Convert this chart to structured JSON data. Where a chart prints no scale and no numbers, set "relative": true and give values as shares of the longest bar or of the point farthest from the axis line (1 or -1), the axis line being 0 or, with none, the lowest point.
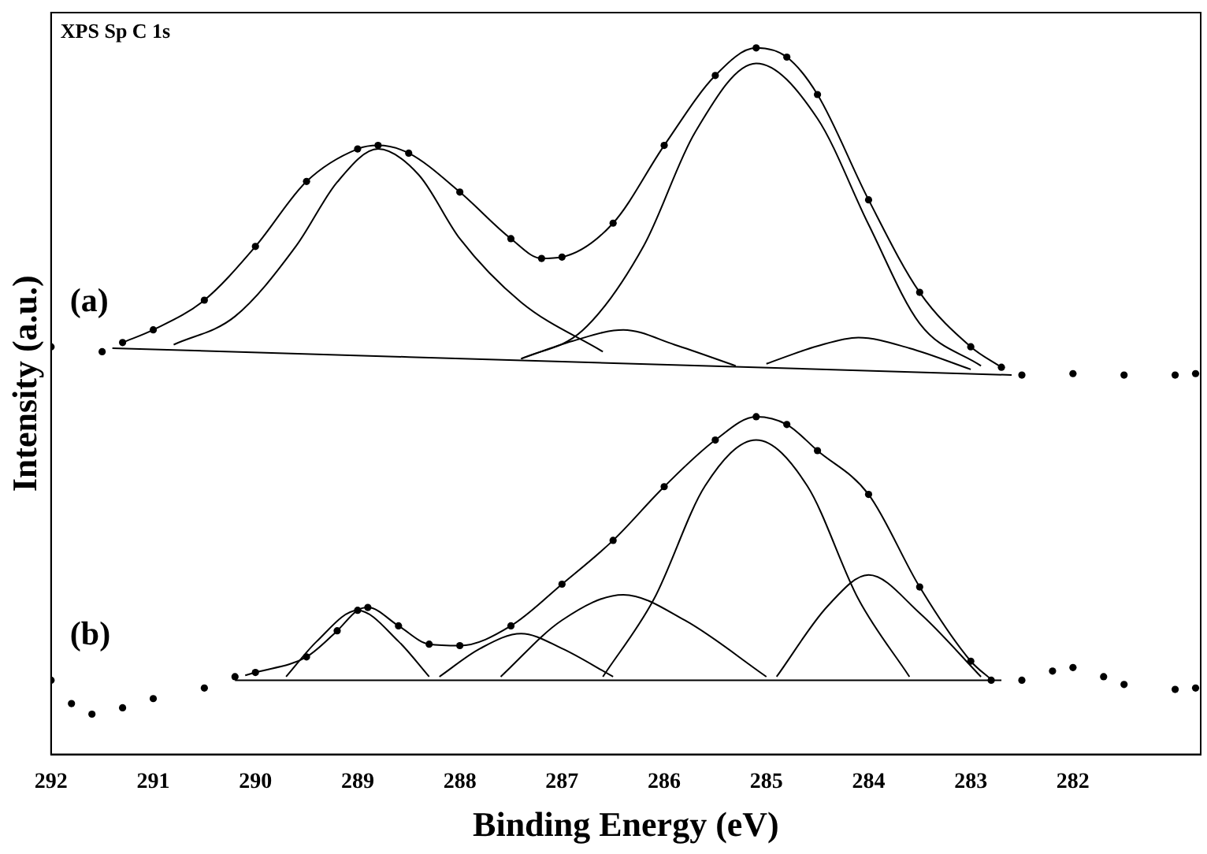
{
  "chart_data": {
    "type": "line",
    "xlabel": "Binding Energy (eV)",
    "ylabel": "Intensity (a.u.)",
    "relative": true,
    "xlim": [
      292,
      280.75
    ],
    "xticks": [
      292,
      291,
      290,
      289,
      288,
      287,
      286,
      285,
      284,
      283,
      282
    ],
    "tick_labels": "x",
    "grid": false,
    "legend": false,
    "marker": "circle",
    "line_style": "solid",
    "annotations": [
      "XPS Sp C 1s",
      "(a)",
      "(b)"
    ],
    "series": [
      {
        "type": "scatter",
        "color": "#000000",
        "x": [
          292,
          291.5,
          291.3,
          291,
          290.5,
          290,
          289.5,
          289,
          288.8,
          288.5,
          288,
          287.5,
          287.2,
          287,
          286.5,
          286,
          285.5,
          285.1,
          284.8,
          284.5,
          284,
          283.5,
          283,
          282.7,
          282.5,
          282,
          281.5,
          281,
          280.8
        ],
        "values": [
          0.577,
          0.57,
          0.583,
          0.601,
          0.643,
          0.719,
          0.811,
          0.857,
          0.862,
          0.851,
          0.796,
          0.73,
          0.702,
          0.704,
          0.752,
          0.862,
          0.961,
          1,
          0.987,
          0.934,
          0.785,
          0.654,
          0.577,
          0.548,
          0.537,
          0.539,
          0.537,
          0.537,
          0.539
        ]
      },
      {
        "type": "line",
        "marker": "none",
        "color": "#000000",
        "x": [
          291.3,
          291,
          290.5,
          290,
          289.5,
          289,
          288.8,
          288.5,
          288,
          287.5,
          287.2,
          287,
          286.5,
          286,
          285.5,
          285.1,
          284.8,
          284.5,
          284,
          283.5,
          283,
          282.7
        ],
        "values": [
          0.583,
          0.601,
          0.643,
          0.719,
          0.811,
          0.857,
          0.862,
          0.851,
          0.796,
          0.73,
          0.702,
          0.704,
          0.752,
          0.862,
          0.961,
          1,
          0.987,
          0.934,
          0.785,
          0.654,
          0.577,
          0.548
        ]
      },
      {
        "type": "line",
        "marker": "none",
        "color": "#000000",
        "x": [
          291.4,
          282.6
        ],
        "values": [
          0.575,
          0.537
        ]
      },
      {
        "type": "line",
        "marker": "none",
        "color": "#000000",
        "x": [
          290.8,
          290.2,
          289.6,
          289.2,
          288.8,
          288.4,
          288.0,
          287.4,
          286.6
        ],
        "values": [
          0.58,
          0.62,
          0.72,
          0.81,
          0.857,
          0.82,
          0.73,
          0.64,
          0.57
        ]
      },
      {
        "type": "line",
        "marker": "none",
        "color": "#000000",
        "x": [
          287.4,
          286.8,
          286.2,
          285.7,
          285.1,
          284.5,
          284.0,
          283.5,
          282.9
        ],
        "values": [
          0.56,
          0.6,
          0.72,
          0.88,
          0.978,
          0.9,
          0.75,
          0.61,
          0.55
        ]
      },
      {
        "type": "line",
        "marker": "none",
        "color": "#000000",
        "x": [
          287.4,
          286.9,
          286.4,
          285.9,
          285.3
        ],
        "values": [
          0.56,
          0.585,
          0.601,
          0.58,
          0.55
        ]
      },
      {
        "type": "line",
        "marker": "none",
        "color": "#000000",
        "x": [
          285.0,
          284.5,
          284.1,
          283.6,
          283.0
        ],
        "values": [
          0.553,
          0.578,
          0.59,
          0.575,
          0.545
        ]
      },
      {
        "type": "scatter",
        "color": "#000000",
        "x": [
          292,
          291.8,
          291.6,
          291.3,
          291,
          290.5,
          290.2,
          290,
          289.5,
          289.2,
          289,
          288.9,
          288.6,
          288.3,
          288,
          287.5,
          287,
          286.5,
          286,
          285.5,
          285.1,
          284.8,
          284.5,
          284,
          283.5,
          283,
          282.8,
          282.5,
          282.2,
          282,
          281.7,
          281.5,
          281,
          280.8
        ],
        "values": [
          0.105,
          0.072,
          0.057,
          0.066,
          0.079,
          0.094,
          0.11,
          0.116,
          0.138,
          0.175,
          0.204,
          0.208,
          0.182,
          0.156,
          0.154,
          0.182,
          0.241,
          0.303,
          0.379,
          0.445,
          0.478,
          0.467,
          0.43,
          0.368,
          0.237,
          0.132,
          0.105,
          0.105,
          0.118,
          0.123,
          0.11,
          0.099,
          0.092,
          0.094
        ]
      },
      {
        "type": "line",
        "marker": "none",
        "color": "#000000",
        "x": [
          290.1,
          290,
          289.5,
          289.2,
          289,
          288.9,
          288.6,
          288.3,
          288,
          287.5,
          287,
          286.5,
          286,
          285.5,
          285.1,
          284.8,
          284.5,
          284,
          283.5,
          283,
          282.8
        ],
        "values": [
          0.112,
          0.116,
          0.138,
          0.175,
          0.204,
          0.208,
          0.182,
          0.156,
          0.154,
          0.182,
          0.241,
          0.303,
          0.379,
          0.445,
          0.478,
          0.467,
          0.43,
          0.368,
          0.237,
          0.132,
          0.106
        ]
      },
      {
        "type": "line",
        "marker": "none",
        "color": "#000000",
        "x": [
          290.2,
          282.7
        ],
        "values": [
          0.105,
          0.105
        ]
      },
      {
        "type": "line",
        "marker": "none",
        "color": "#000000",
        "x": [
          289.7,
          289.4,
          289.0,
          288.6,
          288.3
        ],
        "values": [
          0.11,
          0.16,
          0.204,
          0.16,
          0.11
        ]
      },
      {
        "type": "line",
        "marker": "none",
        "color": "#000000",
        "x": [
          288.2,
          287.8,
          287.4,
          287.0,
          286.5
        ],
        "values": [
          0.11,
          0.15,
          0.171,
          0.15,
          0.11
        ]
      },
      {
        "type": "line",
        "marker": "none",
        "color": "#000000",
        "x": [
          287.6,
          287.0,
          286.4,
          285.8,
          285.0
        ],
        "values": [
          0.11,
          0.19,
          0.226,
          0.19,
          0.11
        ]
      },
      {
        "type": "line",
        "marker": "none",
        "color": "#000000",
        "x": [
          286.6,
          286.1,
          285.6,
          285.1,
          284.6,
          284.1,
          283.6
        ],
        "values": [
          0.11,
          0.22,
          0.38,
          0.445,
          0.38,
          0.22,
          0.11
        ]
      },
      {
        "type": "line",
        "marker": "none",
        "color": "#000000",
        "x": [
          284.9,
          284.4,
          284.0,
          283.5,
          282.9
        ],
        "values": [
          0.11,
          0.21,
          0.254,
          0.2,
          0.11
        ]
      }
    ]
  }
}
